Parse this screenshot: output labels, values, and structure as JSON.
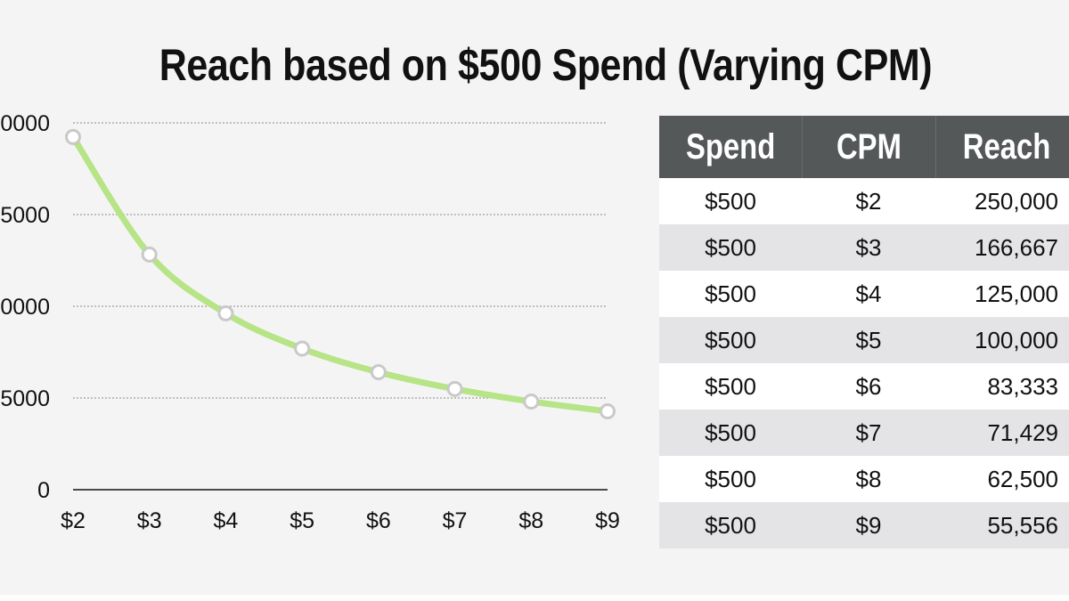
{
  "title": "Reach based on $500 Spend (Varying CPM)",
  "chart_data": {
    "type": "line",
    "title": "Reach based on $500 Spend (Varying CPM)",
    "categories": [
      "$2",
      "$3",
      "$4",
      "$5",
      "$6",
      "$7",
      "$8",
      "$9"
    ],
    "series": [
      {
        "values": [
          250000,
          166667,
          125000,
          100000,
          83333,
          71429,
          62500,
          55556
        ]
      }
    ],
    "y_tick_labels": [
      "0",
      "5000",
      "0000",
      "5000",
      "0000"
    ],
    "ylim": [
      0,
      260000
    ],
    "grid": true,
    "line_color": "#b6e486",
    "marker_color": "#ffffff",
    "marker_edge_color": "#c9c9c9"
  },
  "table": {
    "headers": [
      "Spend",
      "CPM",
      "Reach"
    ],
    "rows": [
      [
        "$500",
        "$2",
        "250,000"
      ],
      [
        "$500",
        "$3",
        "166,667"
      ],
      [
        "$500",
        "$4",
        "125,000"
      ],
      [
        "$500",
        "$5",
        "100,000"
      ],
      [
        "$500",
        "$6",
        "83,333"
      ],
      [
        "$500",
        "$7",
        "71,429"
      ],
      [
        "$500",
        "$8",
        "62,500"
      ],
      [
        "$500",
        "$9",
        "55,556"
      ]
    ],
    "header_bg": "#555859",
    "stripe_bg": "#e4e4e6"
  }
}
